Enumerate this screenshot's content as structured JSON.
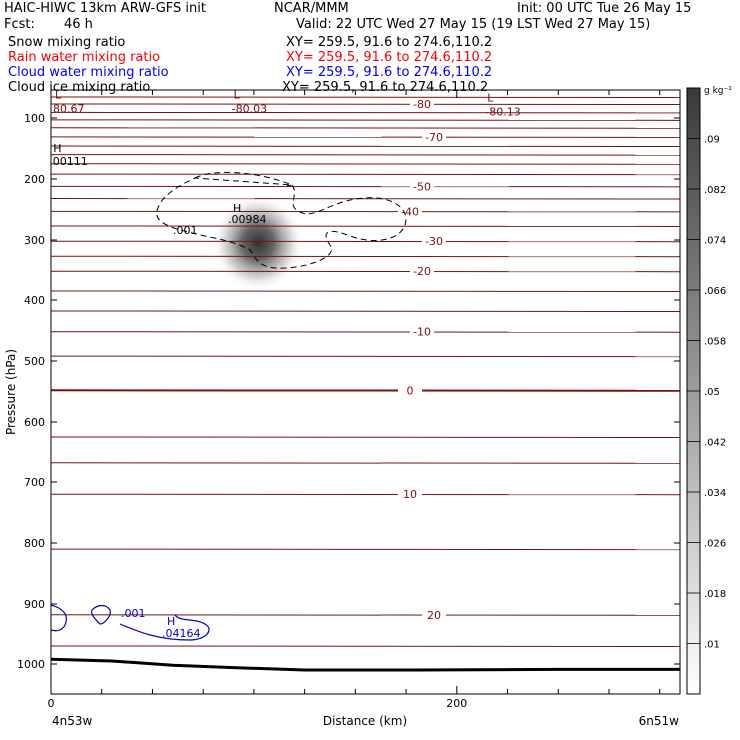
{
  "header": {
    "model": "HAIC-HIWC 13km ARW-GFS init",
    "org": "NCAR/MMM",
    "init": "Init: 00 UTC Tue 26 May 15",
    "fcst_label": "Fcst:",
    "fcst_value": "46 h",
    "valid": "Valid: 22 UTC Wed 27 May 15 (19 LST Wed 27 May 15)",
    "fields": [
      {
        "name": "Snow mixing ratio",
        "xy": "",
        "color": "#000000"
      },
      {
        "name": "Rain water mixing ratio",
        "xy": "XY= 259.5, 91.6 to 274.6,110.2",
        "color": "#ff0000"
      },
      {
        "name": "Cloud water mixing ratio",
        "xy": "XY= 259.5, 91.6 to 274.6,110.2",
        "color": "#0000ff"
      },
      {
        "name": "Cloud ice mixing ratio",
        "xy": "XY= 259.5, 91.6 to 274.6,110.2",
        "color": "#000000"
      }
    ],
    "snow_xy": "XY= 259.5, 91.6 to 274.6,110.2"
  },
  "chart_data": {
    "type": "cross-section",
    "xlabel": "Distance (km)",
    "ylabel": "Pressure (hPa)",
    "xlim": [
      0,
      310
    ],
    "ylim": [
      1050,
      60
    ],
    "x_ticks": [
      0,
      200
    ],
    "y_ticks": [
      100,
      200,
      300,
      400,
      500,
      600,
      700,
      800,
      900,
      1000
    ],
    "left_endpoint": "4n53w",
    "right_endpoint": "6n51w",
    "temperature_contours": {
      "color": "#7a1010",
      "levels": [
        {
          "p": 70,
          "label": ""
        },
        {
          "p": 80,
          "label": "-80"
        },
        {
          "p": 92,
          "label": ""
        },
        {
          "p": 103,
          "label": ""
        },
        {
          "p": 116,
          "label": ""
        },
        {
          "p": 131,
          "label": "-70"
        },
        {
          "p": 146,
          "label": ""
        },
        {
          "p": 160,
          "label": ""
        },
        {
          "p": 175,
          "label": ""
        },
        {
          "p": 192,
          "label": ""
        },
        {
          "p": 212,
          "label": "-50"
        },
        {
          "p": 232,
          "label": ""
        },
        {
          "p": 253,
          "label": "-40"
        },
        {
          "p": 277,
          "label": ""
        },
        {
          "p": 302,
          "label": "-30"
        },
        {
          "p": 327,
          "label": ""
        },
        {
          "p": 352,
          "label": "-20"
        },
        {
          "p": 385,
          "label": ""
        },
        {
          "p": 418,
          "label": ""
        },
        {
          "p": 452,
          "label": "-10"
        },
        {
          "p": 492,
          "label": ""
        },
        {
          "p": 548,
          "label": "0"
        },
        {
          "p": 625,
          "label": ""
        },
        {
          "p": 668,
          "label": ""
        },
        {
          "p": 720,
          "label": "10"
        },
        {
          "p": 810,
          "label": ""
        },
        {
          "p": 918,
          "label": "20"
        },
        {
          "p": 970,
          "label": ""
        }
      ],
      "extrema": [
        {
          "type": "L",
          "value": "80.67",
          "x": 2,
          "p": 78
        },
        {
          "type": "L",
          "value": "-80.03",
          "x": 90,
          "p": 78
        },
        {
          "type": "L",
          "value": "-80.13",
          "x": 215,
          "p": 82
        }
      ]
    },
    "snow_field": {
      "colorbar_label": "g kg⁻¹",
      "colorbar_ticks": [
        ".01",
        ".018",
        ".026",
        ".034",
        ".042",
        ".05",
        ".058",
        ".066",
        ".074",
        ".082",
        ".09"
      ],
      "max_label": {
        "type": "H",
        "value": ".00984",
        "x": 90,
        "p": 268
      },
      "blob_center": {
        "x": 102,
        "p": 305
      }
    },
    "cloud_ice": {
      "contour_label": ".001",
      "max_label": {
        "type": "H",
        "value": ".00111",
        "x": 8,
        "p": 180
      }
    },
    "cloud_water": {
      "color": "#0000c0",
      "contour_label": ".001",
      "max_label": {
        "type": "H",
        "value": ".04164",
        "x": 55,
        "p": 940
      }
    },
    "surface_pressure": [
      {
        "x": 0,
        "p": 992
      },
      {
        "x": 30,
        "p": 995
      },
      {
        "x": 60,
        "p": 1002
      },
      {
        "x": 90,
        "p": 1006
      },
      {
        "x": 125,
        "p": 1010
      },
      {
        "x": 180,
        "p": 1010
      },
      {
        "x": 250,
        "p": 1009
      },
      {
        "x": 310,
        "p": 1009
      }
    ]
  }
}
